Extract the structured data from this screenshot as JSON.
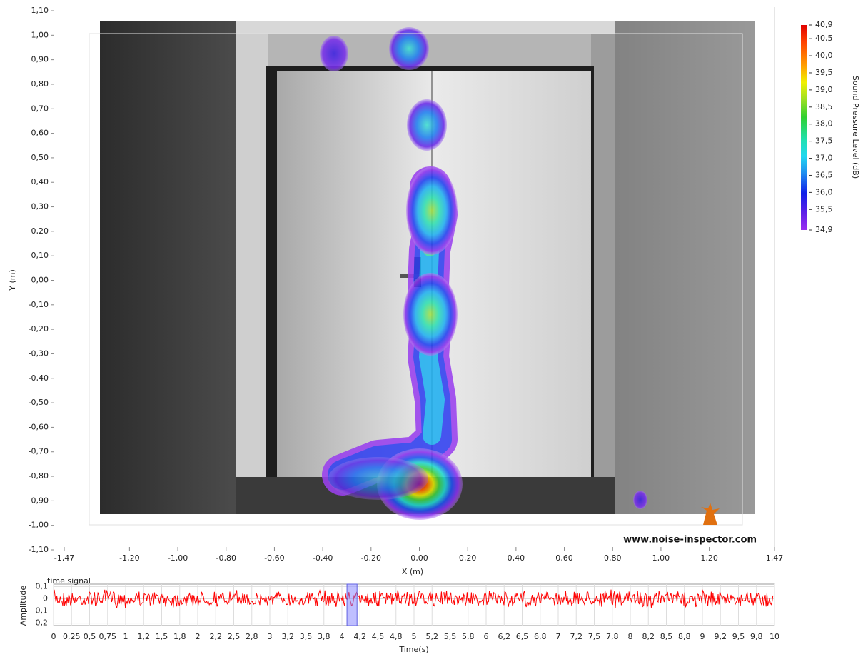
{
  "chart_data": [
    {
      "type": "heatmap",
      "x_label": "X (m)",
      "y_label": "Y (m)",
      "xlim": [
        -1.47,
        1.47
      ],
      "ylim": [
        -1.1,
        1.1
      ],
      "xticks": [
        {
          "value": -1.47,
          "label": "-1,47"
        },
        {
          "value": -1.2,
          "label": "-1,20"
        },
        {
          "value": -1,
          "label": "-1,00"
        },
        {
          "value": -0.8,
          "label": "-0,80"
        },
        {
          "value": -0.6,
          "label": "-0,60"
        },
        {
          "value": -0.4,
          "label": "-0,40"
        },
        {
          "value": -0.2,
          "label": "-0,20"
        },
        {
          "value": 0,
          "label": "0,00"
        },
        {
          "value": 0.2,
          "label": "0,20"
        },
        {
          "value": 0.4,
          "label": "0,40"
        },
        {
          "value": 0.6,
          "label": "0,60"
        },
        {
          "value": 0.8,
          "label": "0,80"
        },
        {
          "value": 1,
          "label": "1,00"
        },
        {
          "value": 1.2,
          "label": "1,20"
        },
        {
          "value": 1.47,
          "label": "1,47"
        }
      ],
      "yticks": [
        {
          "value": 1.1,
          "label": "1,10"
        },
        {
          "value": 1,
          "label": "1,00"
        },
        {
          "value": 0.9,
          "label": "0,90"
        },
        {
          "value": 0.8,
          "label": "0,80"
        },
        {
          "value": 0.7,
          "label": "0,70"
        },
        {
          "value": 0.6,
          "label": "0,60"
        },
        {
          "value": 0.5,
          "label": "0,50"
        },
        {
          "value": 0.4,
          "label": "0,40"
        },
        {
          "value": 0.3,
          "label": "0,30"
        },
        {
          "value": 0.2,
          "label": "0,20"
        },
        {
          "value": 0.1,
          "label": "0,10"
        },
        {
          "value": 0,
          "label": "0,00"
        },
        {
          "value": -0.1,
          "label": "-0,10"
        },
        {
          "value": -0.2,
          "label": "-0,20"
        },
        {
          "value": -0.3,
          "label": "-0,30"
        },
        {
          "value": -0.4,
          "label": "-0,40"
        },
        {
          "value": -0.5,
          "label": "-0,50"
        },
        {
          "value": -0.6,
          "label": "-0,60"
        },
        {
          "value": -0.7,
          "label": "-0,70"
        },
        {
          "value": -0.8,
          "label": "-0,80"
        },
        {
          "value": -0.9,
          "label": "-0,90"
        },
        {
          "value": -1,
          "label": "-1,00"
        },
        {
          "value": -1.1,
          "label": "-1,10"
        }
      ],
      "colorbar": {
        "label": "Sound Pressure Level (dB)",
        "lim": [
          34.9,
          40.9
        ],
        "ticks": [
          {
            "value": 40.9,
            "label": "40,9"
          },
          {
            "value": 40.5,
            "label": "40,5"
          },
          {
            "value": 40,
            "label": "40,0"
          },
          {
            "value": 39.5,
            "label": "39,5"
          },
          {
            "value": 39,
            "label": "39,0"
          },
          {
            "value": 38.5,
            "label": "38,5"
          },
          {
            "value": 38,
            "label": "38,0"
          },
          {
            "value": 37.5,
            "label": "37,5"
          },
          {
            "value": 37,
            "label": "37,0"
          },
          {
            "value": 36.5,
            "label": "36,5"
          },
          {
            "value": 36,
            "label": "36,0"
          },
          {
            "value": 35.5,
            "label": "35,5"
          },
          {
            "value": 34.9,
            "label": "34,9"
          }
        ]
      },
      "annotation": "www.noise-inspector.com"
    },
    {
      "type": "line",
      "title": "time signal",
      "x_label": "Time(s)",
      "y_label": "Amplitude",
      "color": "#ff0000",
      "xlim": [
        0,
        10
      ],
      "ylim": [
        -0.22,
        0.12
      ],
      "yticks": [
        {
          "value": 0.1,
          "label": "0,1"
        },
        0,
        {
          "value": -0.1,
          "label": "-0,1"
        },
        {
          "value": -0.2,
          "label": "-0,2"
        }
      ],
      "xticks": [
        0,
        {
          "value": 0.25,
          "label": "0,25"
        },
        {
          "value": 0.5,
          "label": "0,5"
        },
        {
          "value": 0.75,
          "label": "0,75"
        },
        1,
        {
          "value": 1.25,
          "label": "1,2"
        },
        {
          "value": 1.5,
          "label": "1,5"
        },
        {
          "value": 1.75,
          "label": "1,8"
        },
        2,
        {
          "value": 2.25,
          "label": "2,2"
        },
        {
          "value": 2.5,
          "label": "2,5"
        },
        {
          "value": 2.75,
          "label": "2,8"
        },
        3,
        {
          "value": 3.25,
          "label": "3,2"
        },
        {
          "value": 3.5,
          "label": "3,5"
        },
        {
          "value": 3.75,
          "label": "3,8"
        },
        4,
        {
          "value": 4.25,
          "label": "4,2"
        },
        {
          "value": 4.5,
          "label": "4,5"
        },
        {
          "value": 4.75,
          "label": "4,8"
        },
        5,
        {
          "value": 5.25,
          "label": "5,2"
        },
        {
          "value": 5.5,
          "label": "5,5"
        },
        {
          "value": 5.75,
          "label": "5,8"
        },
        6,
        {
          "value": 6.25,
          "label": "6,2"
        },
        {
          "value": 6.5,
          "label": "6,5"
        },
        {
          "value": 6.75,
          "label": "6,8"
        },
        7,
        {
          "value": 7.25,
          "label": "7,2"
        },
        {
          "value": 7.5,
          "label": "7,5"
        },
        {
          "value": 7.75,
          "label": "7,8"
        },
        8,
        {
          "value": 8.25,
          "label": "8,2"
        },
        {
          "value": 8.5,
          "label": "8,5"
        },
        {
          "value": 8.75,
          "label": "8,8"
        },
        9,
        {
          "value": 9.25,
          "label": "9,2"
        },
        {
          "value": 9.5,
          "label": "9,5"
        },
        {
          "value": 9.75,
          "label": "9,8"
        },
        10
      ],
      "selection": [
        4.07,
        4.21
      ]
    }
  ]
}
